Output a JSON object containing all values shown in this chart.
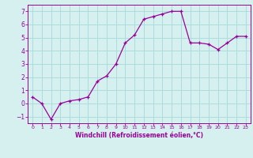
{
  "x": [
    0,
    1,
    2,
    3,
    4,
    5,
    6,
    7,
    8,
    9,
    10,
    11,
    12,
    13,
    14,
    15,
    16,
    17,
    18,
    19,
    20,
    21,
    22,
    23
  ],
  "y": [
    0.5,
    0.0,
    -1.2,
    0.0,
    0.2,
    0.3,
    0.5,
    1.7,
    2.1,
    3.0,
    4.6,
    5.2,
    6.4,
    6.6,
    6.8,
    7.0,
    7.0,
    4.6,
    4.6,
    4.5,
    4.1,
    4.6,
    5.1,
    5.1
  ],
  "line_color": "#990099",
  "marker_color": "#990099",
  "bg_color": "#d6f0f0",
  "grid_color": "#aadddd",
  "xlabel": "Windchill (Refroidissement éolien,°C)",
  "xlabel_color": "#990099",
  "tick_color": "#990099",
  "ylim": [
    -1.5,
    7.5
  ],
  "xlim": [
    -0.5,
    23.5
  ],
  "yticks": [
    -1,
    0,
    1,
    2,
    3,
    4,
    5,
    6,
    7
  ],
  "xtick_labels": [
    "0",
    "1",
    "2",
    "3",
    "4",
    "5",
    "6",
    "7",
    "8",
    "9",
    "10",
    "11",
    "12",
    "13",
    "14",
    "15",
    "16",
    "17",
    "18",
    "19",
    "20",
    "21",
    "22",
    "23"
  ]
}
